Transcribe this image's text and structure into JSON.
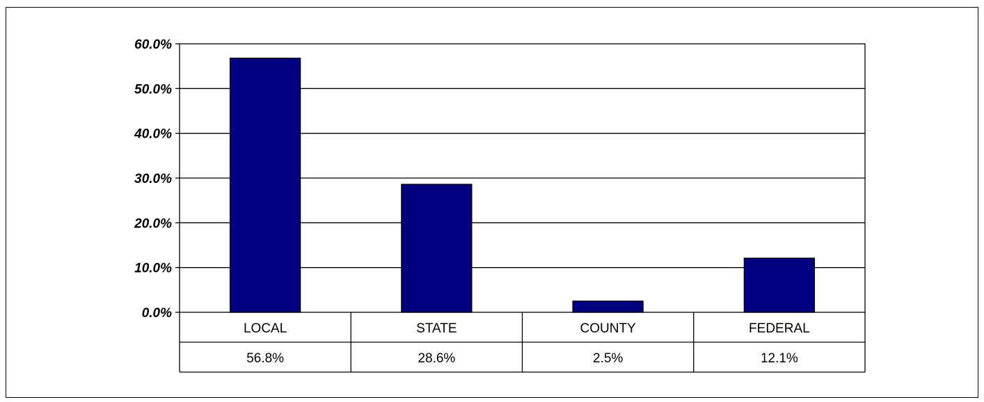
{
  "chart_data": {
    "type": "bar",
    "categories": [
      "LOCAL",
      "STATE",
      "COUNTY",
      "FEDERAL"
    ],
    "values": [
      56.8,
      28.6,
      2.5,
      12.1
    ],
    "value_labels": [
      "56.8%",
      "28.6%",
      "2.5%",
      "12.1%"
    ],
    "yticks": [
      "0.0%",
      "10.0%",
      "20.0%",
      "30.0%",
      "40.0%",
      "50.0%",
      "60.0%"
    ],
    "ylim": [
      0,
      60
    ],
    "grid": true,
    "bar_color": "#000080",
    "data_table": true
  }
}
